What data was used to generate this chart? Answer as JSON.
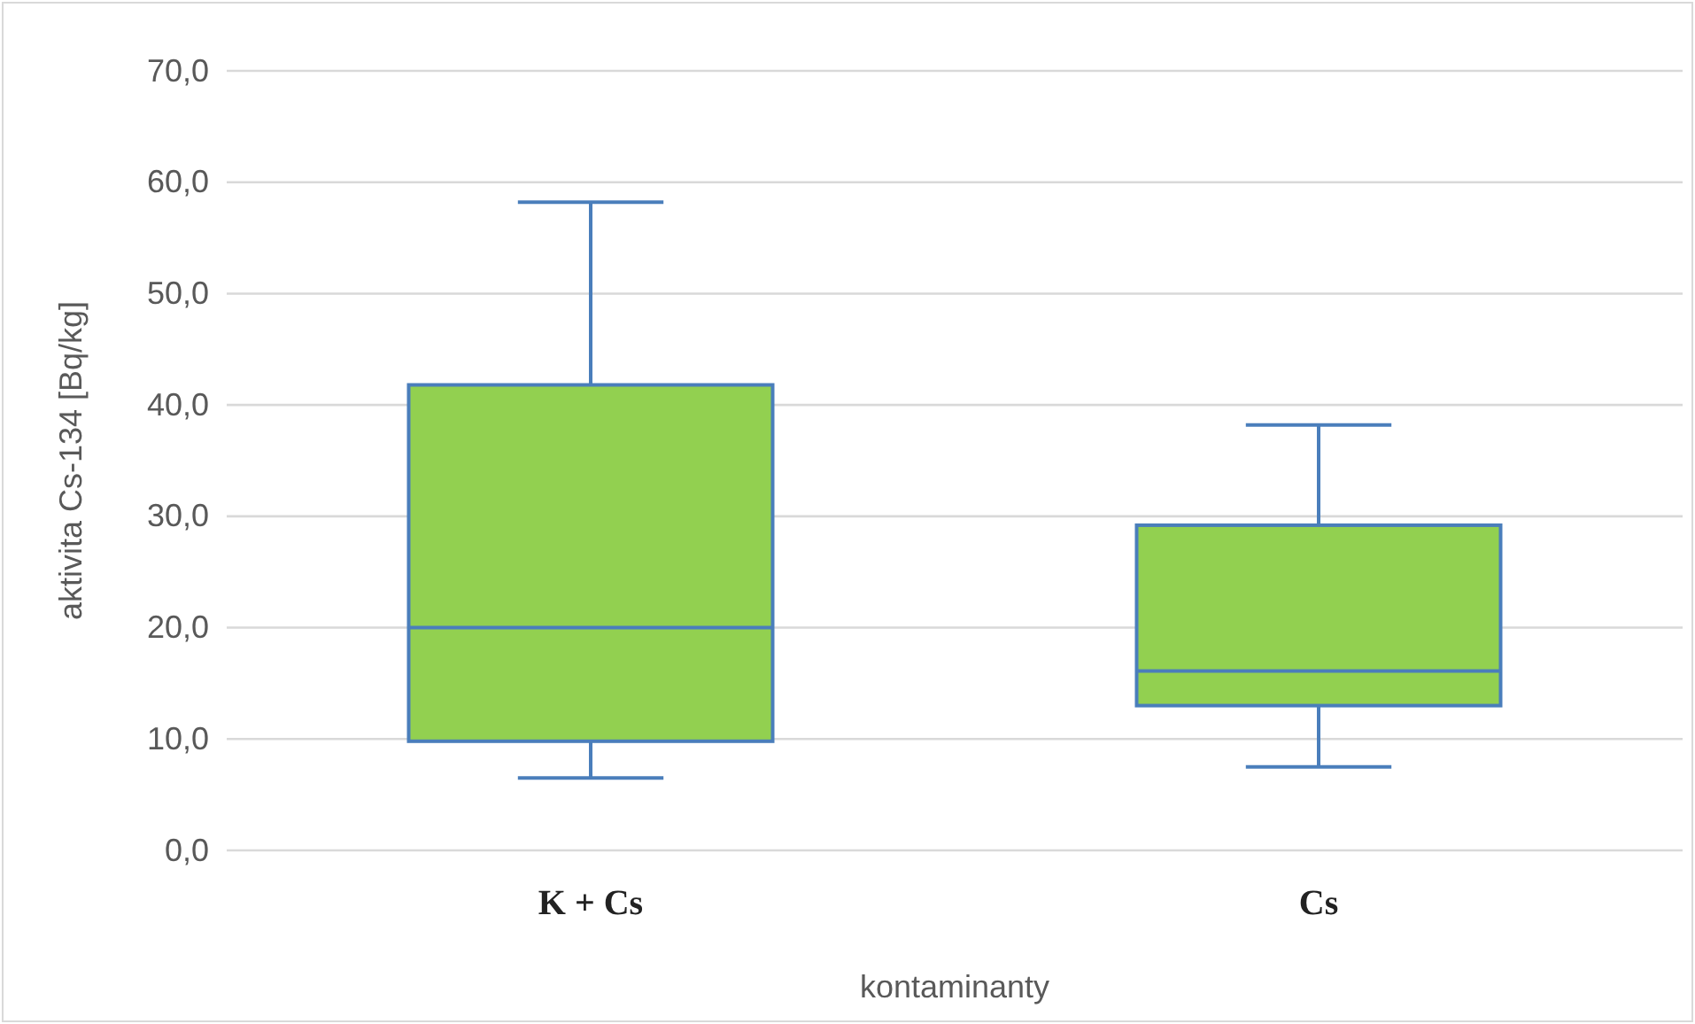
{
  "chart_data": {
    "type": "box",
    "xlabel": "kontaminanty",
    "ylabel": "aktivita Cs-134 [Bq/kg]",
    "categories": [
      "K + Cs",
      "Cs"
    ],
    "color": "#92d050",
    "boxes": [
      {
        "low": 6.5,
        "q1": 9.8,
        "median": 20,
        "q3": 41.8,
        "high": 58.2
      },
      {
        "low": 7.5,
        "q1": 13,
        "median": 16.1,
        "q3": 29.2,
        "high": 38.2
      }
    ],
    "ylim": [
      0,
      70
    ],
    "yticks": [
      {
        "value": 0,
        "label": "0,0"
      },
      {
        "value": 10,
        "label": "10,0"
      },
      {
        "value": 20,
        "label": "20,0"
      },
      {
        "value": 30,
        "label": "30,0"
      },
      {
        "value": 40,
        "label": "40,0"
      },
      {
        "value": 50,
        "label": "50,0"
      },
      {
        "value": 60,
        "label": "60,0"
      },
      {
        "value": 70,
        "label": "70,0"
      }
    ],
    "grid": "y"
  }
}
